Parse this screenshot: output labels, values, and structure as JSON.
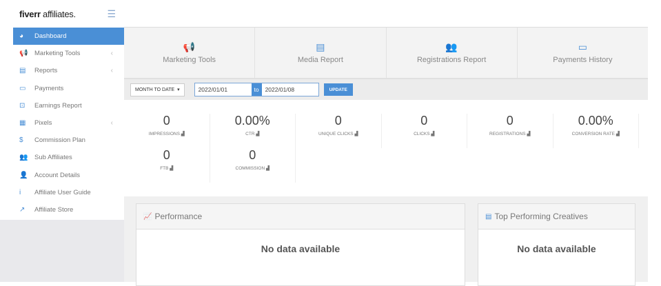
{
  "logo": {
    "brand": "fiverr",
    "suffix": "affiliates."
  },
  "sidebar": {
    "items": [
      {
        "label": "Dashboard",
        "icon": "dashboard-icon",
        "glyph": "◕",
        "active": true
      },
      {
        "label": "Marketing Tools",
        "icon": "megaphone-icon",
        "glyph": "📢",
        "chevron": "‹"
      },
      {
        "label": "Reports",
        "icon": "calendar-icon",
        "glyph": "▤",
        "chevron": "‹"
      },
      {
        "label": "Payments",
        "icon": "credit-card-icon",
        "glyph": "▭"
      },
      {
        "label": "Earnings Report",
        "icon": "money-icon",
        "glyph": "⊡"
      },
      {
        "label": "Pixels",
        "icon": "grid-icon",
        "glyph": "▦",
        "chevron": "‹"
      },
      {
        "label": "Commission Plan",
        "icon": "dollar-icon",
        "glyph": "$"
      },
      {
        "label": "Sub Affiliates",
        "icon": "users-icon",
        "glyph": "👥"
      },
      {
        "label": "Account Details",
        "icon": "user-icon",
        "glyph": "👤"
      },
      {
        "label": "Affiliate User Guide",
        "icon": "info-icon",
        "glyph": "i"
      },
      {
        "label": "Affiliate Store",
        "icon": "external-link-icon",
        "glyph": "↗"
      }
    ]
  },
  "quick_links": [
    {
      "label": "Marketing Tools",
      "glyph": "📢"
    },
    {
      "label": "Media Report",
      "glyph": "▤"
    },
    {
      "label": "Registrations Report",
      "glyph": "👥"
    },
    {
      "label": "Payments History",
      "glyph": "▭"
    }
  ],
  "filter": {
    "range": "MONTH TO DATE",
    "from": "2022/01/01",
    "to_label": "to",
    "to": "2022/01/08",
    "update": "UPDATE"
  },
  "stats": [
    {
      "value": "0",
      "label": "IMPRESSIONS"
    },
    {
      "value": "0.00%",
      "label": "CTR"
    },
    {
      "value": "0",
      "label": "UNIQUE CLICKS"
    },
    {
      "value": "0",
      "label": "CLICKS"
    },
    {
      "value": "0",
      "label": "REGISTRATIONS"
    },
    {
      "value": "0.00%",
      "label": "CONVERSION RATE"
    },
    {
      "value": "0",
      "label": "FTB"
    },
    {
      "value": "0",
      "label": "COMMISSION"
    }
  ],
  "panels": {
    "performance": {
      "title": "Performance",
      "empty": "No data available"
    },
    "creatives": {
      "title": "Top Performing Creatives",
      "empty": "No data available"
    }
  },
  "colors": {
    "accent": "#4a8fd6"
  }
}
